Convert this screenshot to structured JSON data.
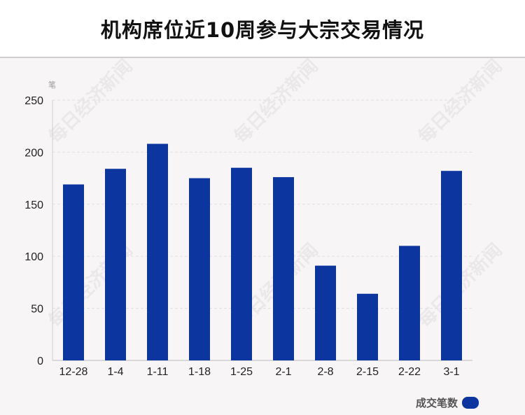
{
  "title": "机构席位近10周参与大宗交易情况",
  "watermark_text": "每日经济新闻",
  "chart_data": {
    "type": "bar",
    "categories": [
      "12-28",
      "1-4",
      "1-11",
      "1-18",
      "1-25",
      "2-1",
      "2-8",
      "2-15",
      "2-22",
      "3-1"
    ],
    "series": [
      {
        "name": "成交笔数",
        "values": [
          169,
          184,
          208,
          175,
          185,
          176,
          91,
          64,
          110,
          182
        ]
      }
    ],
    "ylabel": "笔",
    "ylim": [
      0,
      250
    ],
    "yticks": [
      0,
      50,
      100,
      150,
      200,
      250
    ],
    "grid": true,
    "legend_position": "bottom-right",
    "bar_color": "#0d35a0"
  }
}
